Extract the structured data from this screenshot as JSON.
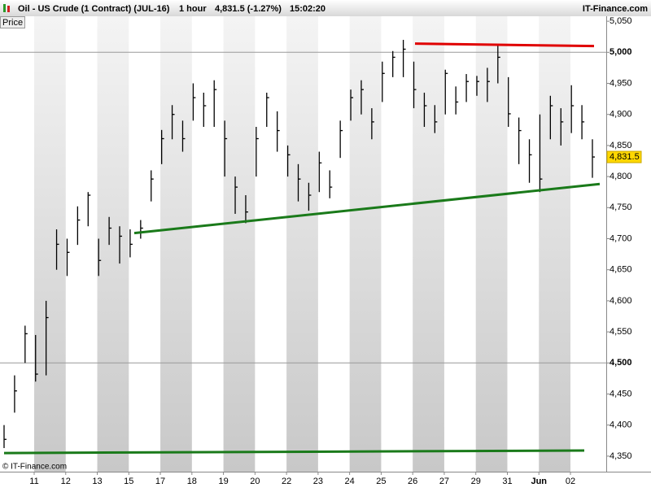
{
  "chart_data": {
    "type": "ohlc",
    "title": "Oil - US Crude (1 Contract) (JUL-16)",
    "interval": "1 hour",
    "quote": "4,831.5 (-1.27%)",
    "time": "15:02:20",
    "brand": "IT-Finance.com",
    "copyright": "© IT-Finance.com",
    "axis_label": "Price",
    "categories": [
      "11",
      "12",
      "13",
      "15",
      "17",
      "18",
      "19",
      "20",
      "22",
      "23",
      "24",
      "25",
      "26",
      "27",
      "29",
      "31",
      "Jun",
      "02"
    ],
    "high": [
      4400,
      4480,
      4560,
      4545,
      4600,
      4715,
      4700,
      4752,
      4775,
      4700,
      4735,
      4720,
      4715,
      4730,
      4810,
      4875,
      4915,
      4890,
      4950,
      4935,
      4955,
      4890,
      4800,
      4770,
      4880,
      4935,
      4905,
      4850,
      4820,
      4790,
      4840,
      4810,
      4890,
      4940,
      4955,
      4910,
      4985,
      5002,
      5020,
      4985,
      4935,
      4915,
      4972,
      4945,
      4965,
      4962,
      4975,
      5012,
      4960,
      4895,
      4860,
      4900,
      4930,
      4910,
      4947,
      4915,
      4860
    ],
    "low": [
      4363,
      4420,
      4500,
      4470,
      4480,
      4650,
      4640,
      4690,
      4720,
      4640,
      4690,
      4660,
      4670,
      4700,
      4760,
      4820,
      4860,
      4840,
      4890,
      4880,
      4880,
      4800,
      4740,
      4725,
      4800,
      4880,
      4840,
      4800,
      4760,
      4745,
      4775,
      4765,
      4830,
      4890,
      4900,
      4860,
      4920,
      4960,
      4960,
      4910,
      4880,
      4870,
      4900,
      4900,
      4920,
      4930,
      4920,
      4950,
      4880,
      4820,
      4790,
      4775,
      4860,
      4850,
      4870,
      4860,
      4798
    ],
    "close": [
      4377,
      4455,
      4547,
      4482,
      4573,
      4691,
      4678,
      4730,
      4770,
      4665,
      4717,
      4704,
      4691,
      4717,
      4796,
      4861,
      4900,
      4861,
      4927,
      4914,
      4940,
      4861,
      4783,
      4743,
      4861,
      4927,
      4874,
      4835,
      4796,
      4770,
      4822,
      4783,
      4874,
      4927,
      4940,
      4888,
      4966,
      4992,
      5005,
      4940,
      4914,
      4888,
      4966,
      4920,
      4953,
      4953,
      4953,
      4992,
      4901,
      4874,
      4835,
      4796,
      4914,
      4888,
      4914,
      4888,
      4831.5
    ],
    "last_label": "4,831.5",
    "color": "#000000",
    "trendlines": [
      {
        "color": "#1a7a1a",
        "values": [
          4709,
          4788
        ]
      },
      {
        "color": "#e00000",
        "values": [
          5014,
          5010
        ]
      },
      {
        "color": "#1a7a1a",
        "values": [
          4355,
          4359
        ]
      }
    ],
    "ylim": [
      4325,
      5058
    ],
    "yticks": [
      {
        "value": 4350,
        "label": "4,350"
      },
      {
        "value": 4400,
        "label": "4,400"
      },
      {
        "value": 4450,
        "label": "4,450"
      },
      {
        "value": 4500,
        "label": "4,500"
      },
      {
        "value": 4550,
        "label": "4,550"
      },
      {
        "value": 4600,
        "label": "4,600"
      },
      {
        "value": 4650,
        "label": "4,650"
      },
      {
        "value": 4700,
        "label": "4,700"
      },
      {
        "value": 4750,
        "label": "4,750"
      },
      {
        "value": 4800,
        "label": "4,800"
      },
      {
        "value": 4850,
        "label": "4,850"
      },
      {
        "value": 4900,
        "label": "4,900"
      },
      {
        "value": 4950,
        "label": "4,950"
      },
      {
        "value": 5000,
        "label": "5,000"
      },
      {
        "value": 5050,
        "label": "5,050"
      }
    ],
    "major_ticks": [
      4500,
      5000
    ]
  }
}
